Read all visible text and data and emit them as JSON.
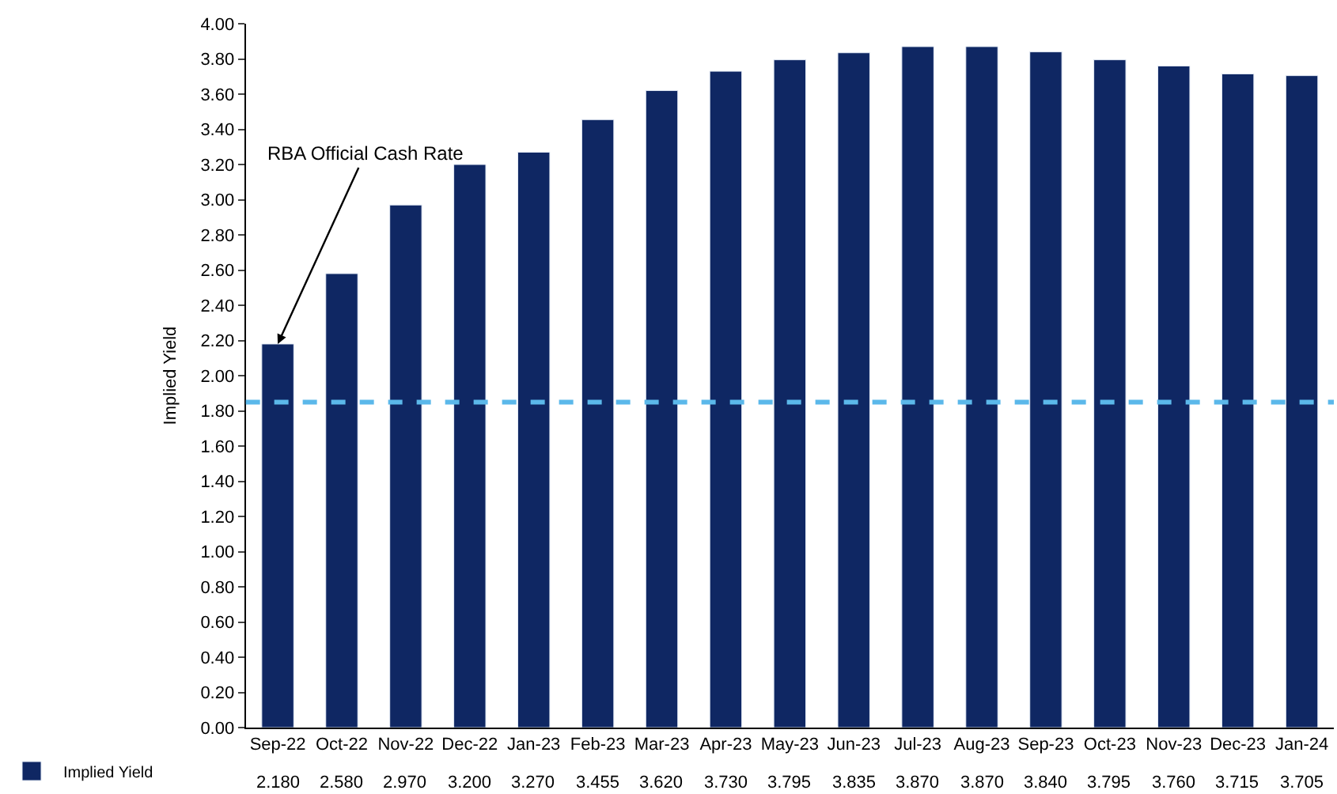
{
  "chart_data": {
    "type": "bar",
    "ylabel": "Implied Yield",
    "categories": [
      "Sep-22",
      "Oct-22",
      "Nov-22",
      "Dec-22",
      "Jan-23",
      "Feb-23",
      "Mar-23",
      "Apr-23",
      "May-23",
      "Jun-23",
      "Jul-23",
      "Aug-23",
      "Sep-23",
      "Oct-23",
      "Nov-23",
      "Dec-23",
      "Jan-24"
    ],
    "series": [
      {
        "name": "Implied Yield",
        "color": "#0f2763",
        "values": [
          2.18,
          2.58,
          2.97,
          3.2,
          3.27,
          3.455,
          3.62,
          3.73,
          3.795,
          3.835,
          3.87,
          3.87,
          3.84,
          3.795,
          3.76,
          3.715,
          3.705
        ],
        "value_labels": [
          "2.180",
          "2.580",
          "2.970",
          "3.200",
          "3.270",
          "3.455",
          "3.620",
          "3.730",
          "3.795",
          "3.835",
          "3.870",
          "3.870",
          "3.840",
          "3.795",
          "3.760",
          "3.715",
          "3.705"
        ]
      }
    ],
    "ylim": [
      0,
      4
    ],
    "yticks": [
      {
        "value": 0,
        "label": "0.00"
      },
      {
        "value": 0.2,
        "label": "0.20"
      },
      {
        "value": 0.4,
        "label": "0.40"
      },
      {
        "value": 0.6,
        "label": "0.60"
      },
      {
        "value": 0.8,
        "label": "0.80"
      },
      {
        "value": 1.0,
        "label": "1.00"
      },
      {
        "value": 1.2,
        "label": "1.20"
      },
      {
        "value": 1.4,
        "label": "1.40"
      },
      {
        "value": 1.6,
        "label": "1.60"
      },
      {
        "value": 1.8,
        "label": "1.80"
      },
      {
        "value": 2.0,
        "label": "2.00"
      },
      {
        "value": 2.2,
        "label": "2.20"
      },
      {
        "value": 2.4,
        "label": "2.40"
      },
      {
        "value": 2.6,
        "label": "2.60"
      },
      {
        "value": 2.8,
        "label": "2.80"
      },
      {
        "value": 3.0,
        "label": "3.00"
      },
      {
        "value": 3.2,
        "label": "3.20"
      },
      {
        "value": 3.4,
        "label": "3.40"
      },
      {
        "value": 3.6,
        "label": "3.60"
      },
      {
        "value": 3.8,
        "label": "3.80"
      },
      {
        "value": 4.0,
        "label": "4.00"
      }
    ],
    "ref_lines": [
      {
        "axis": "y",
        "value": 1.85,
        "color": "#5bb8ea",
        "line_style": "dashed"
      }
    ],
    "annotations": [
      {
        "text": "RBA Official Cash Rate",
        "x": "Sep-22",
        "y": 2.18
      }
    ],
    "legend": "bottom left"
  }
}
